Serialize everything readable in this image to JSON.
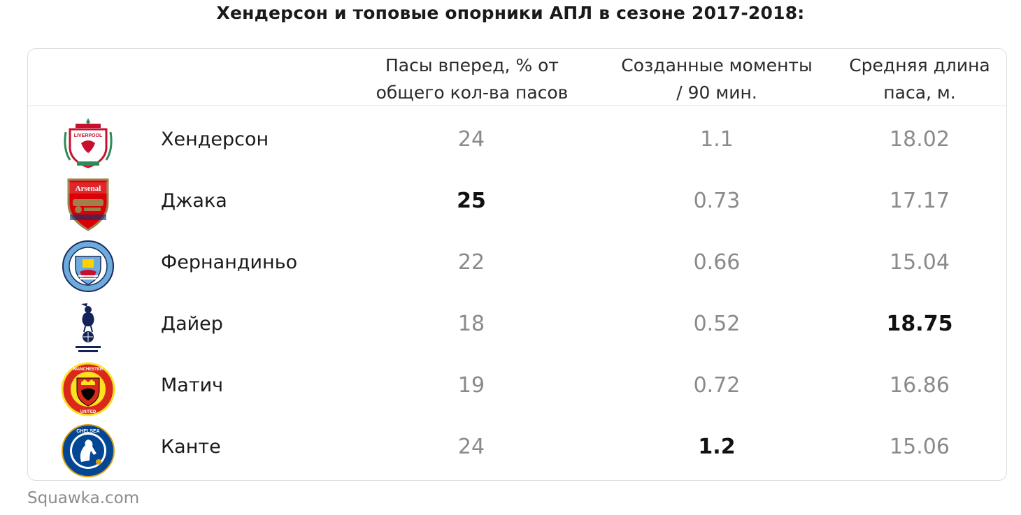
{
  "title": "Хендерсон и топовые опорники АПЛ в сезоне 2017-2018:",
  "source": "Squawka.com",
  "chart_data": {
    "type": "table",
    "columns": [
      {
        "lines": [
          "Пасы вперед, % от",
          "общего кол-ва пасов"
        ]
      },
      {
        "lines": [
          "Созданные моменты",
          "/ 90 мин."
        ]
      },
      {
        "lines": [
          "Средняя длина",
          "паса, м."
        ]
      }
    ],
    "rows": [
      {
        "player": "Хендерсон",
        "club_icon": "liverpool-crest-icon",
        "values": [
          "24",
          "1.1",
          "18.02"
        ],
        "best": [
          false,
          false,
          false
        ]
      },
      {
        "player": "Джака",
        "club_icon": "arsenal-crest-icon",
        "values": [
          "25",
          "0.73",
          "17.17"
        ],
        "best": [
          true,
          false,
          false
        ]
      },
      {
        "player": "Фернандиньо",
        "club_icon": "manchester-city-crest-icon",
        "values": [
          "22",
          "0.66",
          "15.04"
        ],
        "best": [
          false,
          false,
          false
        ]
      },
      {
        "player": "Дайер",
        "club_icon": "tottenham-crest-icon",
        "values": [
          "18",
          "0.52",
          "18.75"
        ],
        "best": [
          false,
          false,
          true
        ]
      },
      {
        "player": "Матич",
        "club_icon": "manchester-united-crest-icon",
        "values": [
          "19",
          "0.72",
          "16.86"
        ],
        "best": [
          false,
          false,
          false
        ]
      },
      {
        "player": "Канте",
        "club_icon": "chelsea-crest-icon",
        "values": [
          "24",
          "1.2",
          "15.06"
        ],
        "best": [
          false,
          true,
          false
        ]
      }
    ],
    "logo_text": {
      "liverpool": "LIVERPOOL",
      "arsenal": "Arsenal",
      "man_utd_top": "MANCHESTER",
      "man_utd_bottom": "UNITED",
      "chelsea": "CHELSEA"
    },
    "colors": {
      "best_value": "#111111",
      "regular_value": "#8a8a8a",
      "liverpool": "#c8102e",
      "arsenal": "#db0007",
      "man_city": "#6cabdd",
      "tottenham": "#132257",
      "man_utd": "#da291c",
      "chelsea": "#034694"
    }
  }
}
